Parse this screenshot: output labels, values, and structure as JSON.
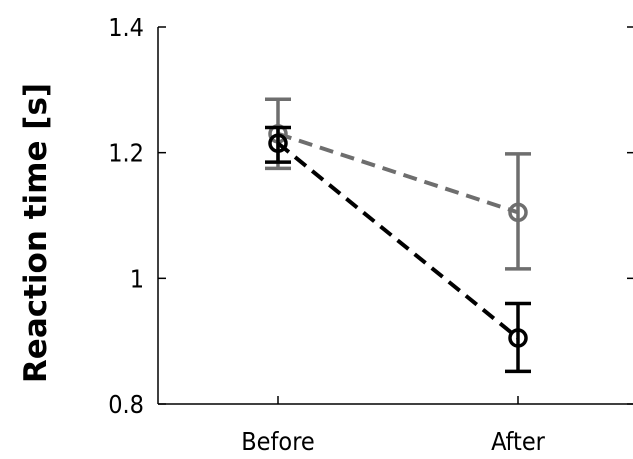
{
  "chart_data": {
    "type": "line",
    "title": "",
    "xlabel": "",
    "ylabel": "Reaction time [s]",
    "categories": [
      "Before",
      "After"
    ],
    "ylim": [
      0.8,
      1.4
    ],
    "yticks": [
      "0.8",
      "1",
      "1.2",
      "1.4"
    ],
    "grid": false,
    "legend": "none",
    "series": [
      {
        "color": "#6e6e6e",
        "line_style": "dashed",
        "marker": "open-circle",
        "values": [
          1.23,
          1.105
        ],
        "error_low": [
          1.175,
          1.015
        ],
        "error_high": [
          1.285,
          1.198
        ]
      },
      {
        "color": "#000000",
        "line_style": "dashed",
        "marker": "open-circle",
        "values": [
          1.215,
          0.905
        ],
        "error_low": [
          1.185,
          0.852
        ],
        "error_high": [
          1.24,
          0.96
        ]
      }
    ]
  }
}
